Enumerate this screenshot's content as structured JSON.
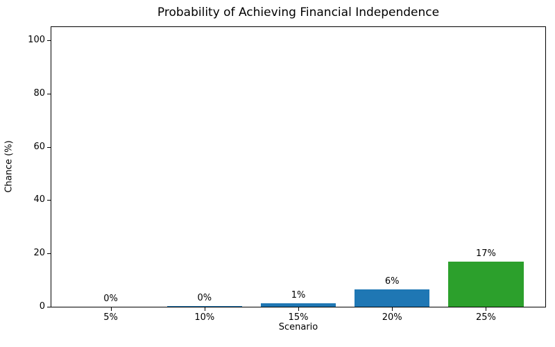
{
  "chart_data": {
    "type": "bar",
    "title": "Probability of Achieving Financial Independence",
    "xlabel": "Scenario",
    "ylabel": "Chance (%)",
    "categories": [
      "5%",
      "10%",
      "15%",
      "20%",
      "25%"
    ],
    "values": [
      0,
      0.4,
      1.4,
      6.4,
      17
    ],
    "bar_labels": [
      "0%",
      "0%",
      "1%",
      "6%",
      "17%"
    ],
    "bar_colors": [
      "#1f77b4",
      "#1f77b4",
      "#1f77b4",
      "#1f77b4",
      "#2ca02c"
    ],
    "ylim": [
      0,
      105
    ],
    "yticks": [
      0,
      20,
      40,
      60,
      80,
      100
    ],
    "grid": false,
    "legend_position": "none"
  },
  "colors": {
    "bar_blue": "#1f77b4",
    "bar_green": "#2ca02c",
    "axis": "#000000",
    "background": "#ffffff",
    "text": "#000000"
  }
}
